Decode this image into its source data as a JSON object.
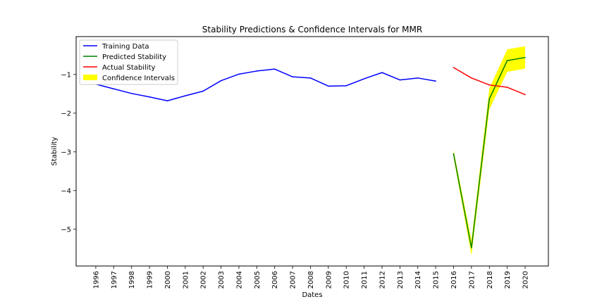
{
  "chart_data": {
    "type": "line",
    "title": "Stability Predictions & Confidence Intervals for MMR",
    "xlabel": "Dates",
    "ylabel": "Stability",
    "x_ticks": [
      "1996",
      "1997",
      "1998",
      "1999",
      "2000",
      "2001",
      "2002",
      "2003",
      "2004",
      "2005",
      "2006",
      "2007",
      "2008",
      "2009",
      "2010",
      "2011",
      "2012",
      "2013",
      "2014",
      "2015",
      "2016",
      "2017",
      "2018",
      "2019",
      "2020"
    ],
    "y_ticks": [
      -5,
      -4,
      -3,
      -2,
      -1
    ],
    "y_tick_labels": [
      "−5",
      "−4",
      "−3",
      "−2",
      "−1"
    ],
    "xlim": [
      1994.9,
      2021.3
    ],
    "ylim": [
      -5.95,
      -0.02
    ],
    "grid": false,
    "legend_position": "top-left",
    "series": [
      {
        "name": "Training Data",
        "color": "#0000ff",
        "x": [
          1996,
          1997,
          1998,
          1999,
          2000,
          2001,
          2002,
          2003,
          2004,
          2005,
          2006,
          2007,
          2008,
          2009,
          2010,
          2011,
          2012,
          2013,
          2014,
          2015
        ],
        "values": [
          -1.25,
          -1.37,
          -1.49,
          -1.58,
          -1.68,
          -1.55,
          -1.43,
          -1.16,
          -0.99,
          -0.91,
          -0.86,
          -1.06,
          -1.09,
          -1.3,
          -1.29,
          -1.11,
          -0.95,
          -1.14,
          -1.09,
          -1.17
        ]
      },
      {
        "name": "Predicted Stability",
        "color": "#008000",
        "x": [
          2016,
          2017,
          2018,
          2019,
          2020
        ],
        "values": [
          -3.05,
          -5.48,
          -1.63,
          -0.64,
          -0.56
        ]
      },
      {
        "name": "Actual Stability",
        "color": "#ff0000",
        "x": [
          2016,
          2017,
          2018,
          2019,
          2020
        ],
        "values": [
          -0.82,
          -1.09,
          -1.27,
          -1.33,
          -1.52
        ]
      }
    ],
    "confidence_interval": {
      "name": "Confidence Intervals",
      "color": "#ffff00",
      "x": [
        2016,
        2017,
        2018,
        2019,
        2020
      ],
      "lower": [
        -3.15,
        -5.68,
        -1.9,
        -0.93,
        -0.85
      ],
      "upper": [
        -2.95,
        -5.28,
        -1.36,
        -0.35,
        -0.27
      ]
    }
  }
}
